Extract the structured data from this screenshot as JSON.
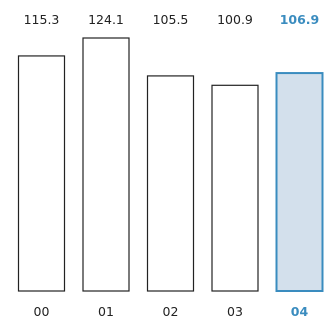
{
  "chart_data": {
    "type": "bar",
    "categories": [
      "00",
      "01",
      "02",
      "03",
      "04"
    ],
    "values": [
      115.3,
      124.1,
      105.5,
      100.9,
      106.9
    ],
    "value_labels": [
      "115.3",
      "124.1",
      "105.5",
      "100.9",
      "106.9"
    ],
    "highlighted_index": 4,
    "ylim": [
      0,
      124.1
    ],
    "grid": false,
    "colors": {
      "bar_fill": "#ffffff",
      "bar_stroke": "#222222",
      "highlight_fill": "#d3e0ec",
      "highlight_stroke": "#3a8cbf",
      "text": "#222222",
      "highlight_text": "#3a8cbf"
    }
  }
}
